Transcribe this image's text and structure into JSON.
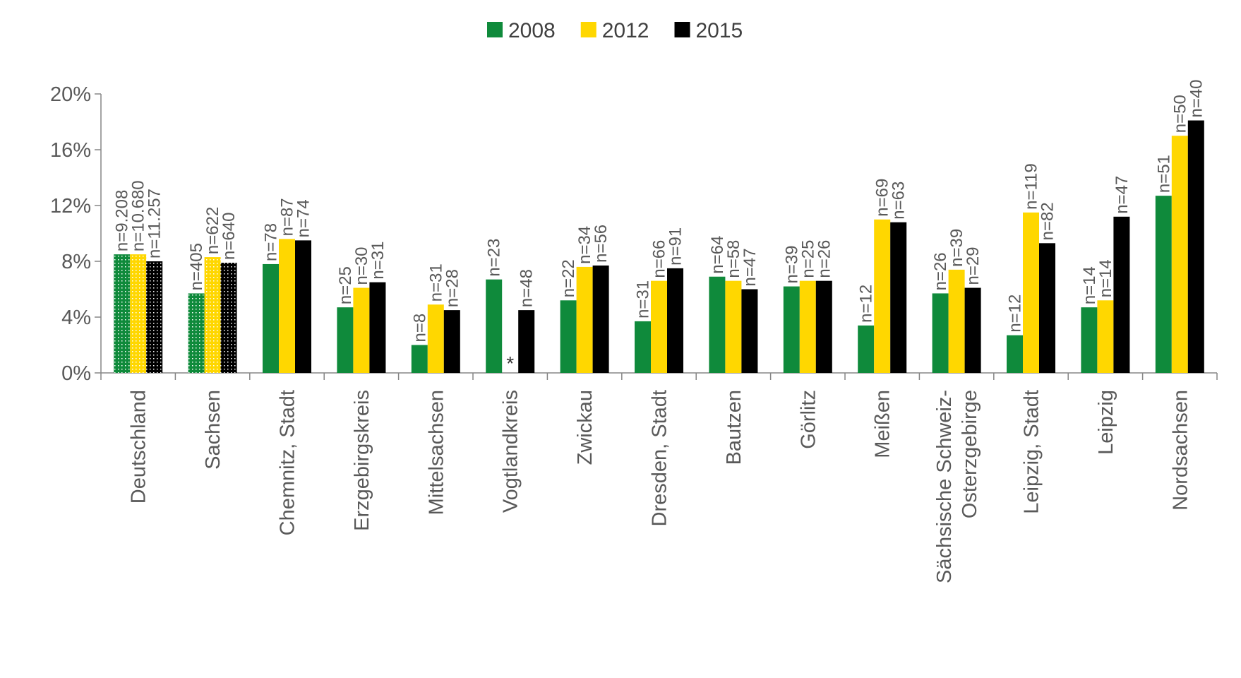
{
  "chart_data": {
    "type": "bar",
    "categories": [
      "Deutschland",
      "Sachsen",
      "Chemnitz, Stadt",
      "Erzgebirgskreis",
      "Mittelsachsen",
      "Vogtlandkreis",
      "Zwickau",
      "Dresden, Stadt",
      "Bautzen",
      "Görlitz",
      "Meißen",
      [
        "Sächsische Schweiz-",
        "Osterzgebirge"
      ],
      "Leipzig, Stadt",
      "Leipzig",
      "Nordsachsen"
    ],
    "series": [
      {
        "name": "2008",
        "color": "#0f8a3b",
        "values": [
          8.5,
          5.7,
          7.8,
          4.7,
          2.0,
          6.7,
          5.2,
          3.7,
          6.9,
          6.2,
          3.4,
          5.7,
          2.7,
          4.7,
          12.7
        ],
        "n_labels": [
          "n=9.208",
          "n=405",
          "n=78",
          "n=25",
          "n=8",
          "n=23",
          "n=22",
          "n=31",
          "n=64",
          "n=39",
          "n=12",
          "n=26",
          "n=12",
          "n=14",
          "n=51"
        ]
      },
      {
        "name": "2012",
        "color": "#ffd700",
        "values": [
          8.5,
          8.3,
          9.6,
          6.1,
          4.9,
          null,
          7.6,
          6.6,
          6.6,
          6.6,
          11.0,
          7.4,
          11.5,
          5.2,
          17.0
        ],
        "n_labels": [
          "n=10.680",
          "n=622",
          "n=87",
          "n=30",
          "n=31",
          "*",
          "n=34",
          "n=66",
          "n=58",
          "n=25",
          "n=69",
          "n=39",
          "n=119",
          "n=14",
          "n=50"
        ]
      },
      {
        "name": "2015",
        "color": "#000000",
        "values": [
          8.0,
          7.9,
          9.5,
          6.5,
          4.5,
          4.5,
          7.7,
          7.5,
          6.0,
          6.6,
          10.8,
          6.1,
          9.3,
          11.2,
          18.1
        ],
        "n_labels": [
          "n=11.257",
          "n=640",
          "n=74",
          "n=31",
          "n=28",
          "n=48",
          "n=56",
          "n=91",
          "n=47",
          "n=26",
          "n=63",
          "n=29",
          "n=82",
          "n=47",
          "n=40"
        ]
      }
    ],
    "patterned_categories": [
      0,
      1
    ],
    "ylim": [
      0,
      20
    ],
    "yticks": [
      {
        "value": 0,
        "label": "0%"
      },
      {
        "value": 4,
        "label": "4%"
      },
      {
        "value": 8,
        "label": "8%"
      },
      {
        "value": 12,
        "label": "12%"
      },
      {
        "value": 16,
        "label": "16%"
      },
      {
        "value": 20,
        "label": "20%"
      }
    ],
    "legend": "top"
  }
}
